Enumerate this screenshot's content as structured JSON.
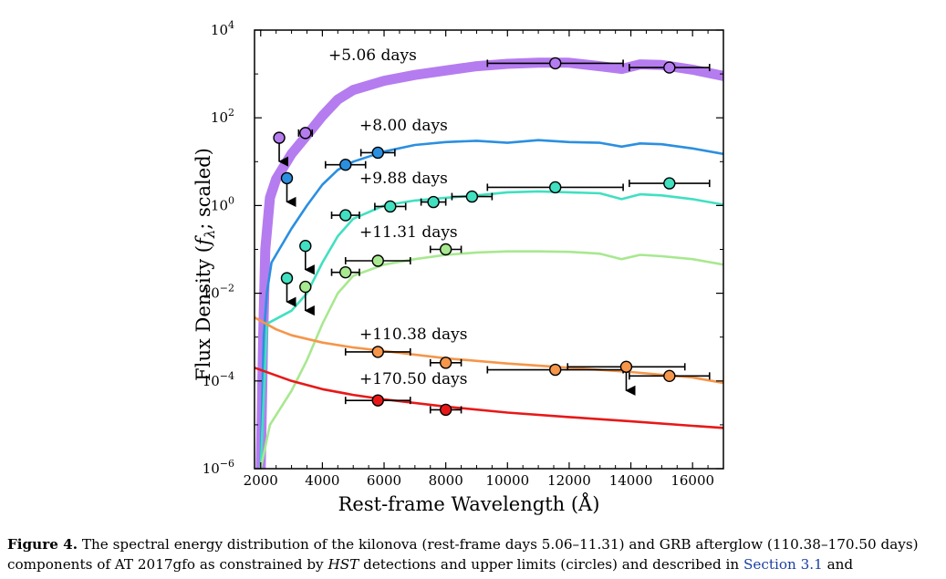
{
  "figure": {
    "xlabel": "Rest-frame Wavelength (Å)",
    "ylabel_parts": [
      "Flux Density (",
      "f",
      "λ",
      "; scaled)"
    ],
    "x_ticks": [
      "2000",
      "4000",
      "6000",
      "8000",
      "10000",
      "12000",
      "14000",
      "16000"
    ],
    "y_ticks": [
      {
        "base": "10",
        "exp": "4"
      },
      {
        "base": "10",
        "exp": "2"
      },
      {
        "base": "10",
        "exp": "0"
      },
      {
        "base": "10",
        "exp": "−2"
      },
      {
        "base": "10",
        "exp": "−4"
      },
      {
        "base": "10",
        "exp": "−6"
      }
    ]
  },
  "chart_data": {
    "type": "scatter",
    "xscale": "linear",
    "yscale": "log",
    "xlim": [
      1800,
      17000
    ],
    "ylim": [
      1e-06,
      10000
    ],
    "xlabel": "Rest-frame Wavelength (Å)",
    "ylabel": "Flux Density (fλ; scaled)",
    "grid": false,
    "series": [
      {
        "name": "+5.06 days",
        "color": "#b57cf0",
        "model_width": "thick",
        "model": [
          [
            2000,
            1e-06
          ],
          [
            2080,
            0.001
          ],
          [
            2150,
            0.1
          ],
          [
            2300,
            1.5
          ],
          [
            2500,
            4
          ],
          [
            3000,
            15
          ],
          [
            3500,
            40
          ],
          [
            4000,
            110
          ],
          [
            4500,
            260
          ],
          [
            5000,
            430
          ],
          [
            6000,
            700
          ],
          [
            7000,
            950
          ],
          [
            8000,
            1200
          ],
          [
            9000,
            1500
          ],
          [
            10000,
            1700
          ],
          [
            11000,
            1800
          ],
          [
            12000,
            1800
          ],
          [
            13000,
            1500
          ],
          [
            13700,
            1300
          ],
          [
            14300,
            1650
          ],
          [
            15000,
            1600
          ],
          [
            16000,
            1250
          ],
          [
            17000,
            900
          ]
        ],
        "points": [
          {
            "x": 2600,
            "y": 35,
            "upper_limit": true
          },
          {
            "x": 3450,
            "y": 45,
            "xerr": 220
          },
          {
            "x": 11550,
            "y": 1750,
            "xerr": 2200
          },
          {
            "x": 15250,
            "y": 1400,
            "xerr": 1300
          }
        ]
      },
      {
        "name": "+8.00 days",
        "color": "#2b8fe0",
        "model": [
          [
            2000,
            1e-06
          ],
          [
            2100,
            0.001
          ],
          [
            2200,
            0.01
          ],
          [
            2350,
            0.05
          ],
          [
            2600,
            0.1
          ],
          [
            3000,
            0.3
          ],
          [
            3500,
            1
          ],
          [
            4000,
            3
          ],
          [
            4500,
            6.5
          ],
          [
            5000,
            10
          ],
          [
            6000,
            17
          ],
          [
            7000,
            24
          ],
          [
            8000,
            28
          ],
          [
            9000,
            30
          ],
          [
            10000,
            27
          ],
          [
            11000,
            31
          ],
          [
            12000,
            28
          ],
          [
            13000,
            27
          ],
          [
            13700,
            22
          ],
          [
            14300,
            26
          ],
          [
            15000,
            25
          ],
          [
            16000,
            20
          ],
          [
            17000,
            15
          ]
        ],
        "points": [
          {
            "x": 2850,
            "y": 4.2,
            "upper_limit": true
          },
          {
            "x": 4750,
            "y": 8.5,
            "xerr": 650
          },
          {
            "x": 5800,
            "y": 16,
            "xerr": 550
          }
        ]
      },
      {
        "name": "+9.88 days",
        "color": "#40e0c0",
        "model": [
          [
            2000,
            1e-06
          ],
          [
            2200,
            0.002
          ],
          [
            3000,
            0.004
          ],
          [
            3500,
            0.01
          ],
          [
            4000,
            0.05
          ],
          [
            4500,
            0.2
          ],
          [
            5000,
            0.5
          ],
          [
            6000,
            1
          ],
          [
            7000,
            1.3
          ],
          [
            8000,
            1.5
          ],
          [
            9000,
            1.7
          ],
          [
            10000,
            2
          ],
          [
            11000,
            2.1
          ],
          [
            12000,
            2
          ],
          [
            13000,
            1.9
          ],
          [
            13700,
            1.4
          ],
          [
            14300,
            1.8
          ],
          [
            15000,
            1.7
          ],
          [
            16000,
            1.4
          ],
          [
            17000,
            1.05
          ]
        ],
        "points": [
          {
            "x": 2850,
            "y": 0.022,
            "upper_limit": true
          },
          {
            "x": 3450,
            "y": 0.12,
            "upper_limit": true
          },
          {
            "x": 4750,
            "y": 0.6,
            "xerr": 450
          },
          {
            "x": 6200,
            "y": 0.95,
            "xerr": 500
          },
          {
            "x": 7600,
            "y": 1.2,
            "xerr": 400
          },
          {
            "x": 8850,
            "y": 1.6,
            "xerr": 650
          },
          {
            "x": 11550,
            "y": 2.6,
            "xerr": 2200
          },
          {
            "x": 15250,
            "y": 3.2,
            "xerr": 1300
          }
        ]
      },
      {
        "name": "+11.31 days",
        "color": "#a8e890",
        "model": [
          [
            2000,
            1e-06
          ],
          [
            2300,
            1e-05
          ],
          [
            3000,
            6e-05
          ],
          [
            3500,
            0.0003
          ],
          [
            4000,
            0.002
          ],
          [
            4500,
            0.01
          ],
          [
            5000,
            0.025
          ],
          [
            6000,
            0.045
          ],
          [
            7000,
            0.06
          ],
          [
            8000,
            0.075
          ],
          [
            9000,
            0.085
          ],
          [
            10000,
            0.09
          ],
          [
            11000,
            0.09
          ],
          [
            12000,
            0.088
          ],
          [
            13000,
            0.08
          ],
          [
            13700,
            0.06
          ],
          [
            14300,
            0.075
          ],
          [
            15000,
            0.07
          ],
          [
            16000,
            0.06
          ],
          [
            17000,
            0.045
          ]
        ],
        "points": [
          {
            "x": 3450,
            "y": 0.014,
            "upper_limit": true
          },
          {
            "x": 4750,
            "y": 0.03,
            "xerr": 450
          },
          {
            "x": 5800,
            "y": 0.055,
            "xerr": 1050
          },
          {
            "x": 8000,
            "y": 0.1,
            "xerr": 500
          }
        ]
      },
      {
        "name": "+110.38 days",
        "color": "#f5964a",
        "model": [
          [
            1800,
            0.0028
          ],
          [
            2500,
            0.0015
          ],
          [
            3000,
            0.0011
          ],
          [
            4000,
            0.00075
          ],
          [
            5000,
            0.00058
          ],
          [
            6000,
            0.00048
          ],
          [
            8000,
            0.00033
          ],
          [
            10000,
            0.00025
          ],
          [
            12000,
            0.0002
          ],
          [
            14000,
            0.00016
          ],
          [
            16000,
            0.00012
          ],
          [
            17000,
            9e-05
          ]
        ],
        "points": [
          {
            "x": 5800,
            "y": 0.00046,
            "xerr": 1050
          },
          {
            "x": 8000,
            "y": 0.00026,
            "xerr": 500
          },
          {
            "x": 11550,
            "y": 0.00018,
            "xerr": 2200
          },
          {
            "x": 13850,
            "y": 0.00021,
            "xerr": 1900,
            "upper_limit": true
          },
          {
            "x": 15250,
            "y": 0.00013,
            "xerr": 1300
          }
        ]
      },
      {
        "name": "+170.50 days",
        "color": "#e81818",
        "model": [
          [
            1800,
            0.0002
          ],
          [
            3000,
            0.0001
          ],
          [
            4000,
            6.5e-05
          ],
          [
            5000,
            4.8e-05
          ],
          [
            6000,
            3.8e-05
          ],
          [
            8000,
            2.6e-05
          ],
          [
            10000,
            1.9e-05
          ],
          [
            12000,
            1.5e-05
          ],
          [
            14000,
            1.2e-05
          ],
          [
            16000,
            9.5e-06
          ],
          [
            17000,
            8.5e-06
          ]
        ],
        "points": [
          {
            "x": 5800,
            "y": 3.6e-05,
            "xerr": 1050
          },
          {
            "x": 8000,
            "y": 2.2e-05,
            "xerr": 500
          }
        ]
      }
    ]
  },
  "caption": {
    "label": "Figure 4.",
    "t1": "The spectral energy distribution of the kilonova (rest-frame days 5.06–11.31) and GRB afterglow (110.38–170.50 days) components of AT 2017gfo as constrained by ",
    "hst": "HST",
    "t2": " detections and upper limits (circles) and described in ",
    "ref": "Section 3.1",
    "t3": " and"
  }
}
